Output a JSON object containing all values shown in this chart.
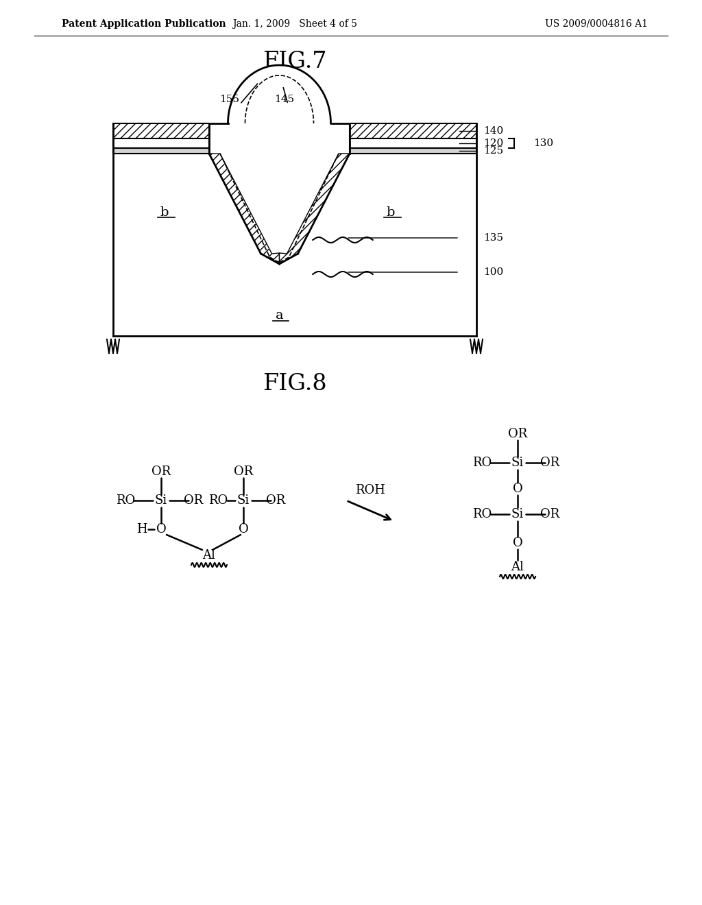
{
  "bg_color": "#ffffff",
  "header_left": "Patent Application Publication",
  "header_mid": "Jan. 1, 2009   Sheet 4 of 5",
  "header_right": "US 2009/0004816 A1",
  "fig7_title": "FIG.7",
  "fig8_title": "FIG.8",
  "line_color": "#000000",
  "hatch_color": "#000000",
  "label_color": "#000000"
}
